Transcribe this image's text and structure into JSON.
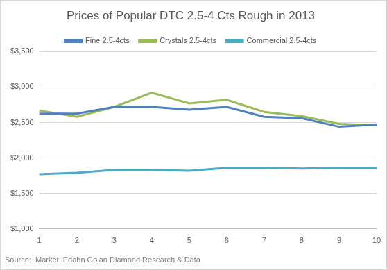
{
  "chart_data": {
    "type": "line",
    "title": "Prices of Popular DTC 2.5-4 Cts Rough in 2013",
    "source": "Source:  Market, Edahn Golan Diamond Research & Data",
    "categories": [
      "1",
      "2",
      "3",
      "4",
      "5",
      "6",
      "7",
      "8",
      "9",
      "10"
    ],
    "series": [
      {
        "name": "Fine 2.5-4cts",
        "color": "#4f81bd",
        "values": [
          2625,
          2625,
          2720,
          2720,
          2680,
          2720,
          2580,
          2560,
          2440,
          2470
        ]
      },
      {
        "name": "Crystals 2.5-4cts",
        "color": "#9bbb59",
        "values": [
          2670,
          2580,
          2720,
          2920,
          2770,
          2820,
          2650,
          2590,
          2480,
          2460
        ]
      },
      {
        "name": "Commercial 2.5-4cts",
        "color": "#4bacc6",
        "values": [
          1770,
          1790,
          1830,
          1830,
          1820,
          1860,
          1860,
          1850,
          1860,
          1860
        ]
      }
    ],
    "ylim": [
      1000,
      3500
    ],
    "yticks": [
      {
        "value": 1000,
        "label": "$1,000"
      },
      {
        "value": 1500,
        "label": "$1,500"
      },
      {
        "value": 2000,
        "label": "$2,000"
      },
      {
        "value": 2500,
        "label": "$2,500"
      },
      {
        "value": 3000,
        "label": "$3,000"
      },
      {
        "value": 3500,
        "label": "$3,500"
      }
    ],
    "grid": true,
    "legend": "top"
  }
}
